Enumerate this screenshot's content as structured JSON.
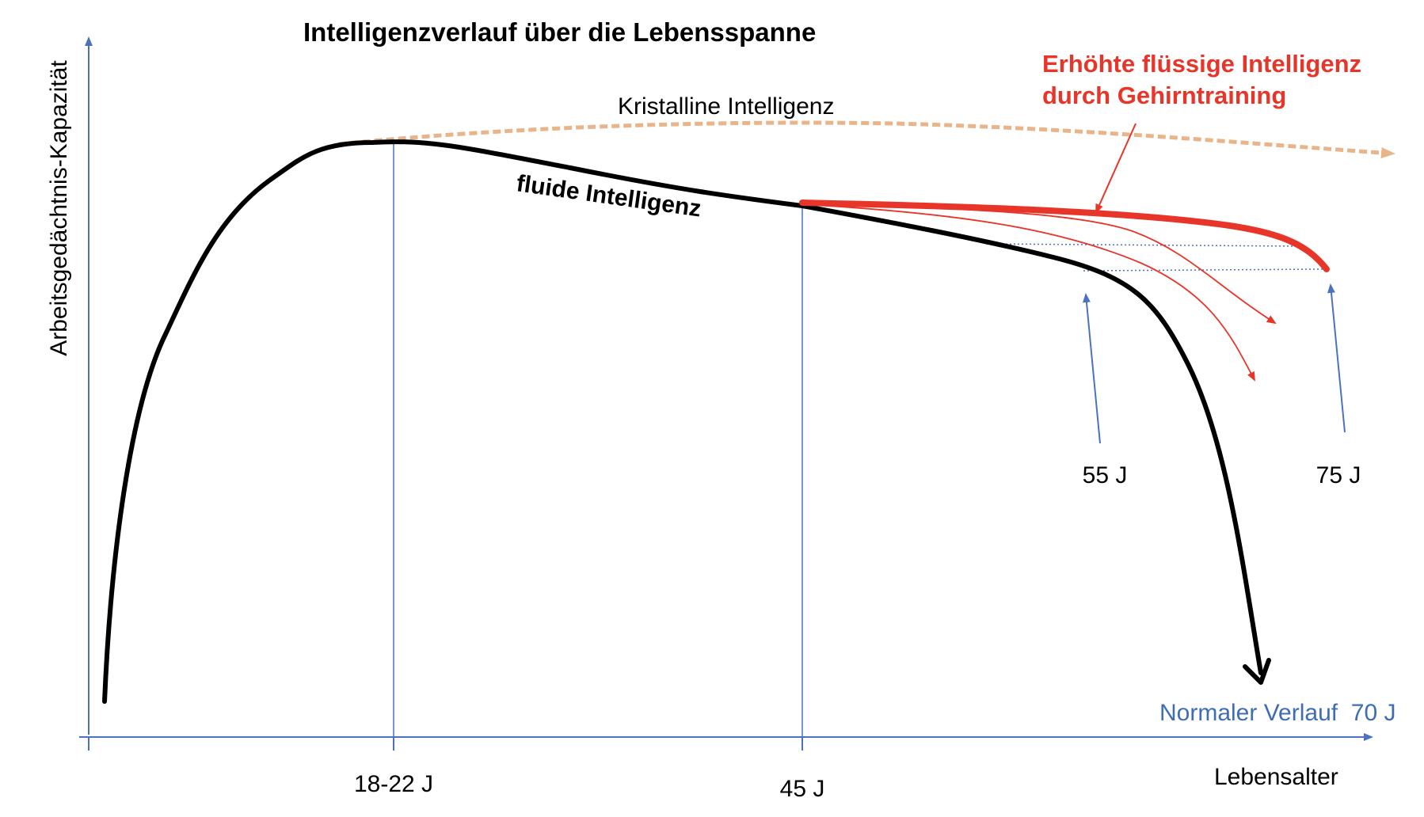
{
  "title": "Intelligenzverlauf über die Lebensspanne",
  "axes": {
    "y_label": "Arbeitsgedächtnis-Kapazität",
    "x_label": "Lebensalter"
  },
  "x_ticks": [
    "18-22 J",
    "45 J"
  ],
  "curves": {
    "crystalline": "Kristalline Intelligenz",
    "fluid": "fluide Intelligenz"
  },
  "annotations": {
    "training_line1": "Erhöhte flüssige Intelligenz",
    "training_line2": "durch Gehirntraining",
    "age_55": "55 J",
    "age_75": "75 J",
    "normal_course": "Normaler Verlauf  70 J"
  },
  "colors": {
    "fluid": "#000000",
    "crystalline": "#e8b48a",
    "training": "#e8352a",
    "axis": "#4a72c0",
    "normal_label": "#3f6db5"
  }
}
